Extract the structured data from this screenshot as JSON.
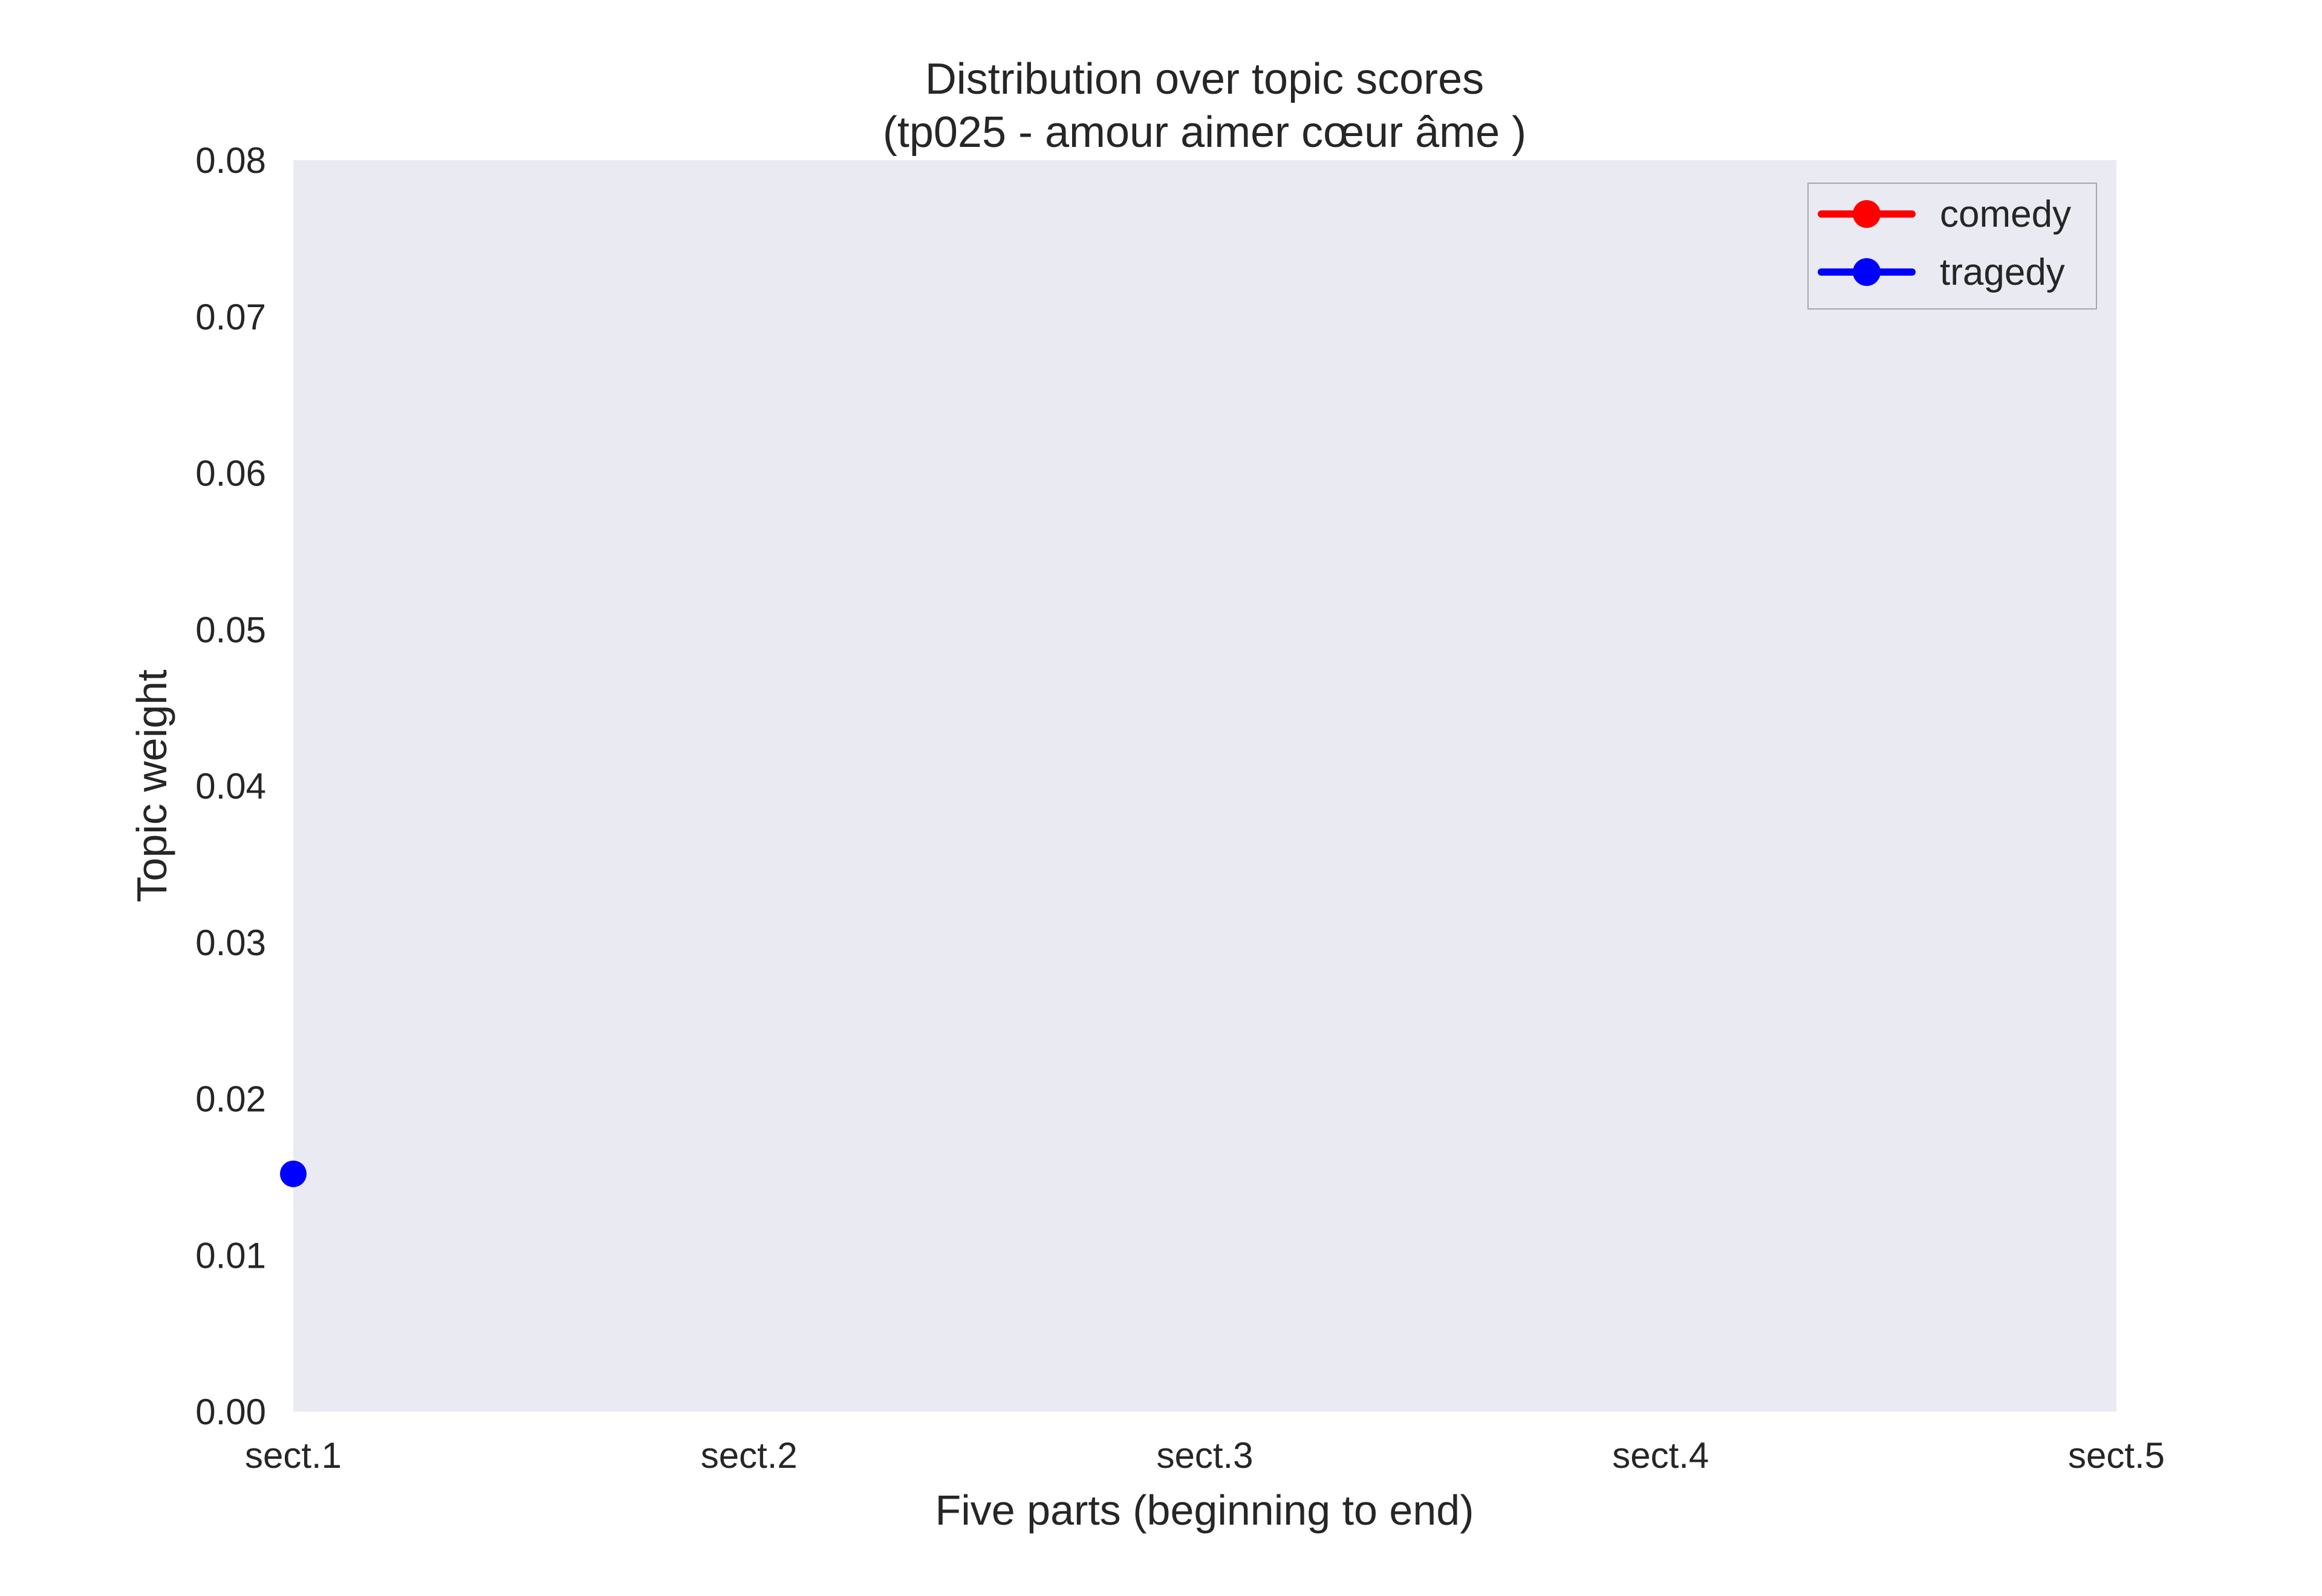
{
  "chart_data": {
    "type": "line",
    "title_line1": "Distribution over topic scores",
    "title_line2": "(tp025 - amour aimer cœur âme )",
    "xlabel": "Five parts (beginning to end)",
    "ylabel": "Topic weight",
    "categories": [
      "sect.1",
      "sect.2",
      "sect.3",
      "sect.4",
      "sect.5"
    ],
    "ylim": [
      0.0,
      0.08
    ],
    "yticks": [
      "0.00",
      "0.01",
      "0.02",
      "0.03",
      "0.04",
      "0.05",
      "0.06",
      "0.07",
      "0.08"
    ],
    "grid": false,
    "legend_position": "top-right",
    "background_color": "#eaeaf2",
    "series": [
      {
        "name": "comedy",
        "color": "#ff0000",
        "values": [
          null,
          null,
          null,
          null,
          null
        ]
      },
      {
        "name": "tragedy",
        "color": "#0000ff",
        "values": [
          0.0152,
          null,
          null,
          null,
          null
        ]
      }
    ]
  }
}
